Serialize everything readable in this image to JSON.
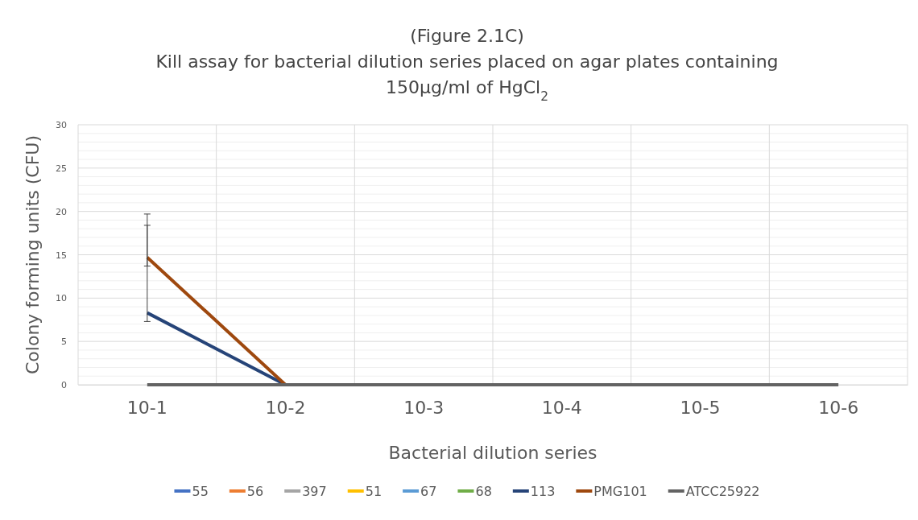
{
  "chart_data": {
    "type": "line",
    "title": "(Figure 2.1C)\nKill assay for bacterial dilution series placed on agar plates containing\n150µg/ml of HgCl$_{2}$",
    "xlabel": "Bacterial dilution series",
    "ylabel": "Colony forming units (CFU)",
    "categories": [
      "10-1",
      "10-2",
      "10-3",
      "10-4",
      "10-5",
      "10-6"
    ],
    "series": [
      {
        "name": "55",
        "color": "#4472c4",
        "values": [
          null,
          null,
          null,
          null,
          null,
          null
        ]
      },
      {
        "name": "56",
        "color": "#ed7d31",
        "values": [
          null,
          null,
          null,
          null,
          null,
          null
        ]
      },
      {
        "name": "397",
        "color": "#a5a5a5",
        "values": [
          null,
          null,
          null,
          null,
          null,
          null
        ]
      },
      {
        "name": "51",
        "color": "#ffc000",
        "values": [
          null,
          null,
          null,
          null,
          null,
          null
        ]
      },
      {
        "name": "67",
        "color": "#5b9bd5",
        "values": [
          null,
          null,
          null,
          null,
          null,
          null
        ]
      },
      {
        "name": "68",
        "color": "#70ad47",
        "values": [
          null,
          null,
          null,
          null,
          null,
          null
        ]
      },
      {
        "name": "113",
        "color": "#264478",
        "values": [
          8.3,
          0,
          null,
          null,
          null,
          null
        ],
        "errors": [
          [
            7.3,
            18.4
          ],
          null,
          null,
          null,
          null,
          null
        ]
      },
      {
        "name": "PMG101",
        "color": "#9e480e",
        "values": [
          14.7,
          0,
          null,
          null,
          null,
          null
        ],
        "errors": [
          [
            13.7,
            19.7
          ],
          null,
          null,
          null,
          null,
          null
        ]
      },
      {
        "name": "ATCC25922",
        "color": "#636363",
        "values": [
          0,
          0,
          0,
          0,
          0,
          0
        ]
      }
    ],
    "ylim": [
      0,
      30
    ],
    "yticks": [
      0,
      {
        "value": 1,
        "label": null
      },
      {
        "value": 2,
        "label": null
      },
      {
        "value": 3,
        "label": null
      },
      {
        "value": 4,
        "label": null
      },
      5,
      {
        "value": 6,
        "label": null
      },
      {
        "value": 7,
        "label": null
      },
      {
        "value": 8,
        "label": null
      },
      {
        "value": 9,
        "label": null
      },
      10,
      {
        "value": 11,
        "label": null
      },
      {
        "value": 12,
        "label": null
      },
      {
        "value": 13,
        "label": null
      },
      {
        "value": 14,
        "label": null
      },
      15,
      {
        "value": 16,
        "label": null
      },
      {
        "value": 17,
        "label": null
      },
      {
        "value": 18,
        "label": null
      },
      {
        "value": 19,
        "label": null
      },
      20,
      {
        "value": 21,
        "label": null
      },
      {
        "value": 22,
        "label": null
      },
      {
        "value": 23,
        "label": null
      },
      {
        "value": 24,
        "label": null
      },
      25,
      {
        "value": 26,
        "label": null
      },
      {
        "value": 27,
        "label": null
      },
      {
        "value": 28,
        "label": null
      },
      {
        "value": 29,
        "label": null
      },
      30
    ],
    "grid": true,
    "legend": "bottom",
    "marker": "none",
    "line_style": "solid"
  }
}
